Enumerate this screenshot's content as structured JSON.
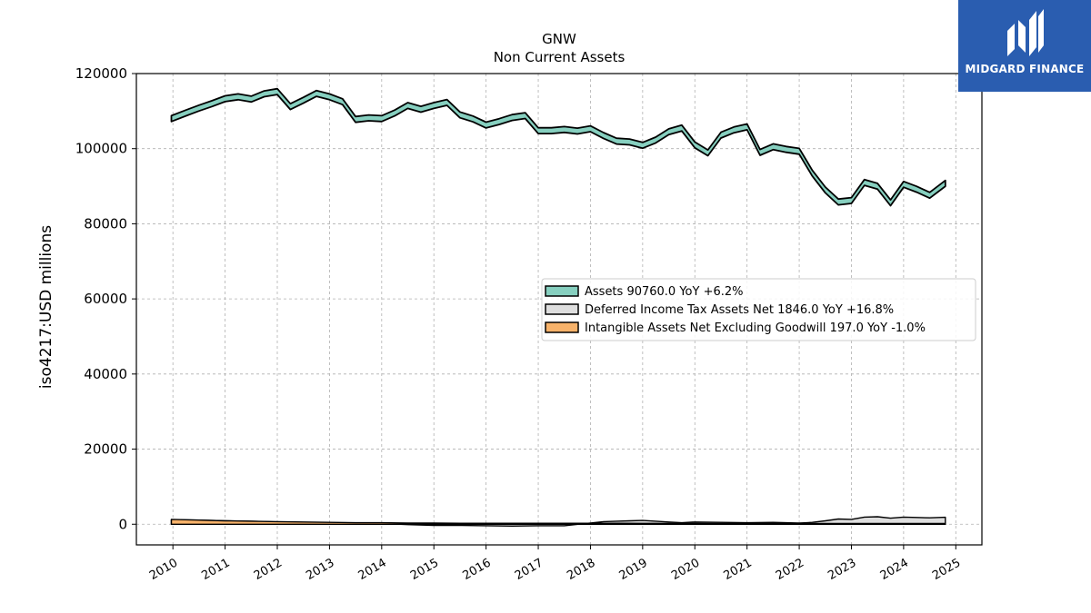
{
  "brand": {
    "name": "MIDGARD FINANCE",
    "bg_color": "#2a5db0",
    "icon": "midgard-logo-icon"
  },
  "chart_data": {
    "type": "line",
    "title": "GNW",
    "subtitle": "Non Current  Assets",
    "ylabel": "iso4217:USD  millions",
    "xlabel": "",
    "ylim": [
      -5500,
      120000
    ],
    "xlim": [
      2009.3,
      2025.5
    ],
    "yticks": [
      0,
      20000,
      40000,
      60000,
      80000,
      100000,
      120000
    ],
    "xticks": [
      "2010",
      "2011",
      "2012",
      "2013",
      "2014",
      "2015",
      "2016",
      "2017",
      "2018",
      "2019",
      "2020",
      "2021",
      "2022",
      "2023",
      "2024",
      "2025"
    ],
    "grid": true,
    "legend_position": "center-right",
    "series": [
      {
        "name": "Assets  90760.0 YoY +6.2%",
        "color": "#86cfbf",
        "style": "band",
        "x": [
          2009.97,
          2010.25,
          2010.5,
          2010.75,
          2011.0,
          2011.25,
          2011.5,
          2011.75,
          2012.0,
          2012.25,
          2012.5,
          2012.75,
          2013.0,
          2013.25,
          2013.5,
          2013.75,
          2014.0,
          2014.25,
          2014.5,
          2014.75,
          2015.0,
          2015.25,
          2015.5,
          2015.75,
          2016.0,
          2016.25,
          2016.5,
          2016.75,
          2017.0,
          2017.25,
          2017.5,
          2017.75,
          2018.0,
          2018.25,
          2018.5,
          2018.75,
          2019.0,
          2019.25,
          2019.5,
          2019.75,
          2020.0,
          2020.25,
          2020.5,
          2020.75,
          2021.0,
          2021.25,
          2021.5,
          2021.75,
          2022.0,
          2022.25,
          2022.5,
          2022.75,
          2023.0,
          2023.25,
          2023.5,
          2023.75,
          2024.0,
          2024.25,
          2024.5,
          2024.8
        ],
        "values": [
          108000,
          109500,
          110800,
          112000,
          113300,
          113800,
          113200,
          114600,
          115200,
          111200,
          112900,
          114700,
          113800,
          112500,
          107800,
          108200,
          108000,
          109500,
          111500,
          110500,
          111500,
          112300,
          109000,
          107900,
          106300,
          107200,
          108300,
          108800,
          104800,
          104800,
          105100,
          104700,
          105300,
          103500,
          102000,
          101800,
          100900,
          102300,
          104500,
          105500,
          101000,
          98900,
          103600,
          105000,
          105800,
          99000,
          100500,
          99800,
          99300,
          93500,
          89000,
          85800,
          86200,
          91000,
          90000,
          85600,
          90500,
          89200,
          87600,
          90760
        ]
      },
      {
        "name": "Deferred Income Tax Assets Net  1846.0 YoY +16.8%",
        "color": "#dedede",
        "style": "area",
        "x": [
          2009.97,
          2010.5,
          2011.0,
          2011.5,
          2012.0,
          2012.5,
          2013.0,
          2013.25,
          2013.5,
          2014.0,
          2014.5,
          2015.0,
          2015.5,
          2016.0,
          2016.5,
          2017.0,
          2017.5,
          2018.0,
          2018.25,
          2018.5,
          2018.75,
          2019.0,
          2019.25,
          2019.5,
          2019.75,
          2020.0,
          2020.5,
          2021.0,
          2021.5,
          2022.0,
          2022.25,
          2022.5,
          2022.75,
          2023.0,
          2023.25,
          2023.5,
          2023.75,
          2024.0,
          2024.25,
          2024.5,
          2024.8
        ],
        "values": [
          1200,
          1100,
          900,
          800,
          600,
          500,
          400,
          200,
          300,
          200,
          -100,
          -300,
          -300,
          -400,
          -500,
          -400,
          -400,
          300,
          700,
          800,
          900,
          1000,
          800,
          600,
          400,
          600,
          500,
          400,
          500,
          300,
          500,
          900,
          1400,
          1300,
          1900,
          2000,
          1600,
          1900,
          1800,
          1700,
          1846
        ]
      },
      {
        "name": "Intangible Assets Net Excluding Goodwill  197.0 YoY -1.0%",
        "color": "#f7b26a",
        "style": "area",
        "x": [
          2009.97,
          2010.5,
          2011.0,
          2011.5,
          2012.0,
          2012.5,
          2013.0,
          2013.5,
          2014.0,
          2014.5,
          2015.0,
          2015.5,
          2016.0,
          2016.5,
          2017.0,
          2017.5,
          2018.0,
          2018.5,
          2019.0,
          2019.5,
          2020.0,
          2020.5,
          2021.0,
          2021.5,
          2022.0,
          2022.5,
          2023.0,
          2023.5,
          2024.0,
          2024.5,
          2024.8
        ],
        "values": [
          1300,
          1100,
          900,
          800,
          700,
          600,
          500,
          400,
          400,
          300,
          300,
          250,
          250,
          250,
          250,
          250,
          250,
          250,
          240,
          230,
          220,
          210,
          210,
          200,
          200,
          200,
          200,
          200,
          200,
          199,
          197
        ]
      }
    ]
  }
}
